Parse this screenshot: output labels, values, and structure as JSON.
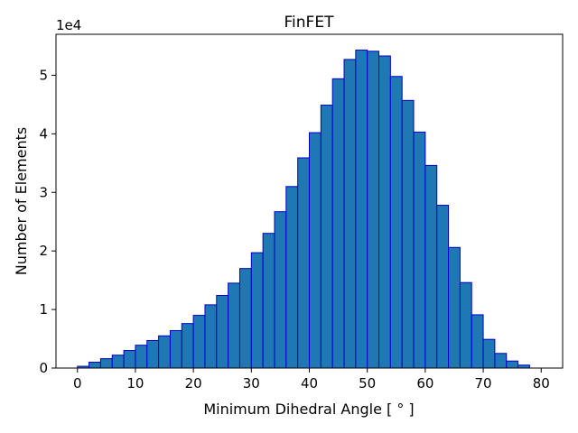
{
  "chart_data": {
    "type": "bar",
    "title": "FinFET",
    "xlabel": "Minimum Dihedral Angle [$^\\circ$]",
    "xlabel_display": "Minimum Dihedral Angle [ ° ]",
    "ylabel": "Number of Elements",
    "y_offset_label": "1e4",
    "xlim": [
      -3.7,
      83.7
    ],
    "ylim": [
      0,
      57000
    ],
    "x_ticks": [
      0,
      10,
      20,
      30,
      40,
      50,
      60,
      70,
      80
    ],
    "y_ticks": [
      0,
      1,
      2,
      3,
      4,
      5
    ],
    "y_tick_scale": 10000,
    "bin_width": 2,
    "bin_starts": [
      0,
      2,
      4,
      6,
      8,
      10,
      12,
      14,
      16,
      18,
      20,
      22,
      24,
      26,
      28,
      30,
      32,
      34,
      36,
      38,
      40,
      42,
      44,
      46,
      48,
      50,
      52,
      54,
      56,
      58,
      60,
      62,
      64,
      66,
      68,
      70,
      72,
      74,
      76,
      78
    ],
    "values": [
      300,
      1000,
      1600,
      2200,
      3000,
      3900,
      4700,
      5500,
      6400,
      7600,
      9000,
      10800,
      12400,
      14500,
      17000,
      19700,
      23000,
      26700,
      31000,
      35900,
      40200,
      44900,
      49400,
      52700,
      54300,
      54100,
      53300,
      49800,
      45700,
      40300,
      34600,
      27800,
      20600,
      14600,
      9100,
      4900,
      2500,
      1200,
      500,
      0
    ],
    "grid": false,
    "colors": {
      "bar_fill": "#1f77b4",
      "bar_edge": "#0000cd",
      "axis": "#000000"
    }
  }
}
